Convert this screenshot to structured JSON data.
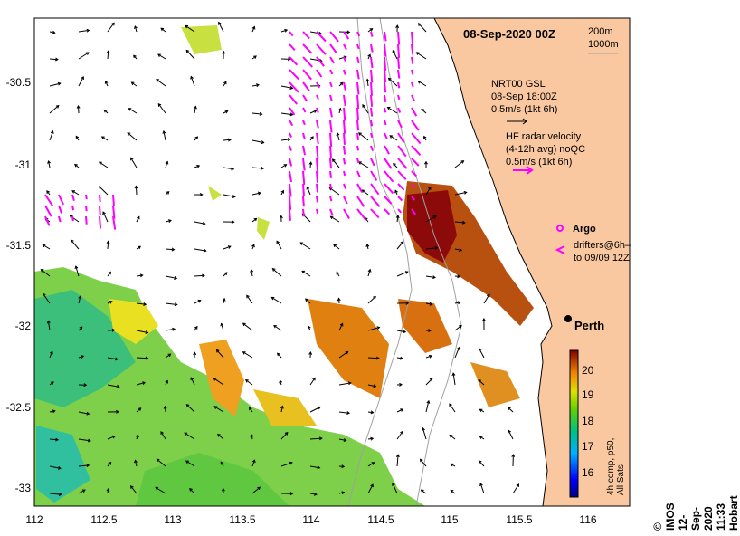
{
  "map": {
    "title": "08-Sep-2020 00Z",
    "depth_contours": [
      "200m",
      "1000m"
    ],
    "city": "Perth",
    "x_ticks": [
      "112",
      "112.5",
      "113",
      "113.5",
      "114",
      "114.5",
      "115",
      "115.5",
      "116"
    ],
    "y_ticks": [
      "-30.5",
      "-31",
      "-31.5",
      "-32",
      "-32.5",
      "-33"
    ],
    "lon_range": [
      112,
      116.3
    ],
    "lat_range": [
      -33.1,
      -30.05
    ],
    "land_color": "#f9c8a0",
    "legend": {
      "model_line1": "NRT00 GSL",
      "model_line2": "08-Sep 18:00Z",
      "model_scale": "0.5m/s (1kt 6h)",
      "radar_line1": "HF radar velocity",
      "radar_line2": "(4-12h avg) noQC",
      "radar_scale": "0.5m/s (1kt 6h)",
      "argo": "Argo",
      "drifters_line1": "drifters@6h–",
      "drifters_line2": "to 09/09 12Z"
    },
    "colorbar": {
      "ticks": [
        "20",
        "19",
        "18",
        "17",
        "16"
      ],
      "label": "4h comp, p50, All Sats"
    },
    "credit": "©  IMOS 12-Sep-2020 11:33 Hobart",
    "colors": {
      "radar": "#ff00ff",
      "arrows": "#000000"
    }
  }
}
